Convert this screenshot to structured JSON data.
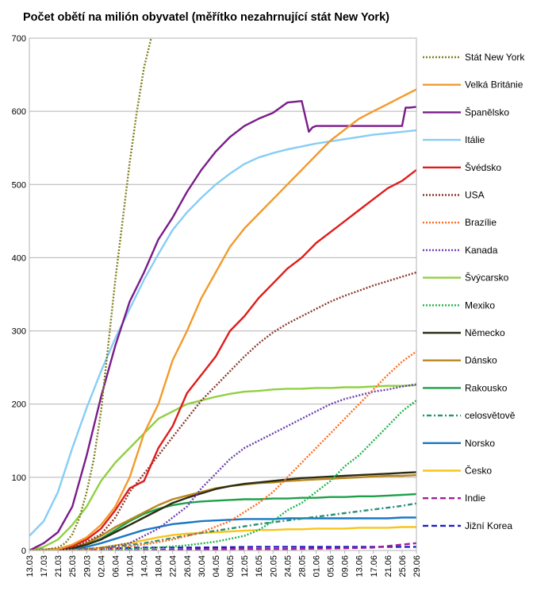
{
  "chart_data": {
    "type": "line",
    "title": "Počet obětí na milión obyvatel (měřítko nezahrnující stát New York)",
    "xlabel": "",
    "ylabel": "",
    "ylim": [
      0,
      700
    ],
    "yticks": [
      0,
      100,
      200,
      300,
      400,
      500,
      600,
      700
    ],
    "xticks": [
      "13.03",
      "17.03",
      "21.03",
      "25.03",
      "29.03",
      "02.04",
      "06.04",
      "10.04",
      "14.04",
      "18.04",
      "22.04",
      "26.04",
      "30.04",
      "04.05",
      "08.05",
      "12.05",
      "16.05",
      "20.05",
      "24.05",
      "28.05",
      "01.06",
      "05.06",
      "09.06",
      "13.06",
      "17.06",
      "21.06",
      "25.06",
      "29.06"
    ],
    "grid": "horizontal",
    "legend_position": "right",
    "series": [
      {
        "name": "Stát New York",
        "color": "#7f7f1f",
        "dash": "dot",
        "x": [
          0,
          4,
          8,
          10,
          12,
          14,
          16,
          18,
          20,
          22,
          24,
          26,
          28,
          30,
          32,
          34,
          36
        ],
        "y": [
          0,
          1,
          4,
          10,
          22,
          45,
          80,
          125,
          190,
          280,
          370,
          450,
          530,
          600,
          660,
          700,
          740
        ]
      },
      {
        "name": "Velká Británie",
        "color": "#f39a2c",
        "dash": "solid",
        "x": [
          0,
          8,
          12,
          16,
          20,
          24,
          28,
          32,
          36,
          40,
          44,
          48,
          52,
          56,
          60,
          64,
          68,
          72,
          76,
          80,
          84,
          88,
          92,
          96,
          100,
          104,
          108,
          110
        ],
        "y": [
          0,
          2,
          8,
          18,
          35,
          60,
          100,
          160,
          200,
          260,
          300,
          345,
          380,
          415,
          440,
          460,
          480,
          500,
          520,
          540,
          560,
          575,
          590,
          600,
          610,
          620,
          630,
          640
        ]
      },
      {
        "name": "Španělsko",
        "color": "#7a1c8a",
        "dash": "solid",
        "x": [
          0,
          4,
          8,
          12,
          16,
          20,
          24,
          28,
          32,
          36,
          40,
          44,
          48,
          52,
          56,
          60,
          64,
          68,
          72,
          76,
          78,
          79,
          80,
          84,
          88,
          92,
          96,
          100,
          104,
          105,
          106,
          108,
          110
        ],
        "y": [
          0,
          10,
          25,
          60,
          130,
          210,
          280,
          340,
          380,
          425,
          455,
          490,
          520,
          545,
          565,
          580,
          590,
          598,
          612,
          614,
          572,
          578,
          580,
          580,
          580,
          580,
          580,
          580,
          580,
          605,
          605,
          606,
          606
        ]
      },
      {
        "name": "Itálie",
        "color": "#87cdf5",
        "dash": "solid",
        "x": [
          0,
          4,
          8,
          12,
          16,
          20,
          24,
          28,
          32,
          36,
          40,
          44,
          48,
          52,
          56,
          60,
          64,
          68,
          72,
          76,
          80,
          84,
          88,
          92,
          96,
          100,
          104,
          108,
          110
        ],
        "y": [
          20,
          40,
          80,
          140,
          195,
          245,
          290,
          330,
          370,
          405,
          438,
          462,
          482,
          500,
          515,
          528,
          537,
          543,
          548,
          552,
          556,
          559,
          562,
          565,
          568,
          570,
          572,
          574,
          575
        ]
      },
      {
        "name": "Švédsko",
        "color": "#e01b1b",
        "dash": "solid",
        "x": [
          0,
          8,
          12,
          16,
          20,
          24,
          28,
          32,
          36,
          40,
          44,
          48,
          52,
          56,
          60,
          64,
          68,
          72,
          76,
          80,
          84,
          88,
          92,
          96,
          100,
          104,
          108,
          110
        ],
        "y": [
          0,
          2,
          6,
          15,
          30,
          55,
          85,
          95,
          140,
          170,
          215,
          240,
          265,
          300,
          320,
          345,
          365,
          385,
          400,
          420,
          435,
          450,
          465,
          480,
          495,
          505,
          520,
          527
        ]
      },
      {
        "name": "USA",
        "color": "#8b3a2e",
        "dash": "dot",
        "x": [
          0,
          8,
          12,
          16,
          20,
          24,
          28,
          32,
          36,
          40,
          44,
          48,
          52,
          56,
          60,
          64,
          68,
          72,
          76,
          80,
          84,
          88,
          92,
          96,
          100,
          104,
          108,
          110
        ],
        "y": [
          0,
          2,
          5,
          12,
          22,
          45,
          80,
          105,
          130,
          155,
          180,
          205,
          225,
          245,
          265,
          283,
          298,
          310,
          320,
          330,
          340,
          348,
          355,
          362,
          368,
          374,
          380,
          385
        ]
      },
      {
        "name": "Brazílie",
        "color": "#ff6a1c",
        "dash": "dot",
        "x": [
          0,
          16,
          24,
          32,
          40,
          48,
          56,
          64,
          68,
          72,
          76,
          80,
          84,
          88,
          92,
          96,
          100,
          104,
          108,
          110
        ],
        "y": [
          0,
          1,
          3,
          8,
          15,
          25,
          40,
          65,
          80,
          100,
          120,
          140,
          160,
          180,
          200,
          220,
          240,
          258,
          272,
          280
        ]
      },
      {
        "name": "Kanada",
        "color": "#6c3fb0",
        "dash": "dot",
        "x": [
          0,
          12,
          20,
          28,
          36,
          44,
          48,
          52,
          56,
          60,
          64,
          68,
          72,
          76,
          80,
          84,
          88,
          92,
          96,
          100,
          104,
          108,
          110
        ],
        "y": [
          0,
          1,
          3,
          10,
          30,
          60,
          85,
          105,
          125,
          140,
          150,
          160,
          170,
          180,
          190,
          200,
          207,
          212,
          217,
          220,
          224,
          227,
          229
        ]
      },
      {
        "name": "Švýcarsko",
        "color": "#90d040",
        "dash": "solid",
        "x": [
          0,
          4,
          8,
          12,
          16,
          20,
          24,
          28,
          32,
          36,
          40,
          44,
          48,
          52,
          56,
          60,
          64,
          68,
          72,
          76,
          80,
          84,
          88,
          92,
          96,
          100,
          104,
          108,
          110
        ],
        "y": [
          0,
          5,
          15,
          35,
          60,
          95,
          120,
          140,
          160,
          180,
          190,
          200,
          205,
          210,
          214,
          217,
          218,
          220,
          221,
          221,
          222,
          222,
          223,
          223,
          224,
          225,
          225,
          226,
          226
        ]
      },
      {
        "name": "Mexiko",
        "color": "#1fb44a",
        "dash": "dot",
        "x": [
          0,
          20,
          28,
          36,
          44,
          52,
          60,
          64,
          68,
          72,
          76,
          80,
          84,
          88,
          92,
          96,
          100,
          104,
          108,
          110
        ],
        "y": [
          0,
          1,
          2,
          4,
          7,
          12,
          20,
          28,
          40,
          55,
          65,
          80,
          95,
          115,
          130,
          150,
          170,
          190,
          205,
          215
        ]
      },
      {
        "name": "Německo",
        "color": "#2c2c14",
        "dash": "solid",
        "x": [
          0,
          8,
          12,
          16,
          20,
          24,
          28,
          32,
          36,
          40,
          44,
          48,
          52,
          56,
          60,
          64,
          68,
          72,
          76,
          80,
          84,
          88,
          92,
          96,
          100,
          104,
          108,
          110
        ],
        "y": [
          0,
          1,
          3,
          8,
          15,
          25,
          35,
          45,
          55,
          65,
          72,
          78,
          84,
          88,
          91,
          93,
          95,
          97,
          99,
          100,
          101,
          102,
          103,
          104,
          105,
          106,
          107,
          107
        ]
      },
      {
        "name": "Dánsko",
        "color": "#b8861c",
        "dash": "solid",
        "x": [
          0,
          8,
          12,
          16,
          20,
          24,
          28,
          32,
          36,
          40,
          44,
          48,
          52,
          56,
          60,
          64,
          68,
          72,
          76,
          80,
          84,
          88,
          92,
          96,
          100,
          104,
          108,
          110
        ],
        "y": [
          0,
          1,
          4,
          10,
          20,
          32,
          42,
          52,
          62,
          70,
          75,
          80,
          85,
          88,
          90,
          92,
          93,
          95,
          96,
          97,
          98,
          99,
          100,
          101,
          102,
          102,
          103,
          103
        ]
      },
      {
        "name": "Rakousko",
        "color": "#1ea04a",
        "dash": "solid",
        "x": [
          0,
          8,
          12,
          16,
          20,
          24,
          28,
          32,
          36,
          40,
          44,
          48,
          52,
          56,
          60,
          64,
          68,
          72,
          76,
          80,
          84,
          88,
          92,
          96,
          100,
          104,
          108,
          110
        ],
        "y": [
          0,
          1,
          3,
          8,
          16,
          28,
          40,
          50,
          57,
          62,
          65,
          67,
          68,
          69,
          70,
          70,
          71,
          71,
          72,
          72,
          73,
          73,
          74,
          74,
          75,
          76,
          77,
          78
        ]
      },
      {
        "name": "celosvětově",
        "color": "#2a8f7a",
        "dash": "dashdot",
        "x": [
          0,
          8,
          16,
          24,
          32,
          40,
          48,
          56,
          64,
          72,
          80,
          88,
          96,
          104,
          110
        ],
        "y": [
          0,
          1,
          2,
          5,
          10,
          17,
          24,
          30,
          36,
          41,
          46,
          51,
          56,
          61,
          66
        ]
      },
      {
        "name": "Norsko",
        "color": "#1a78c4",
        "dash": "solid",
        "x": [
          0,
          8,
          12,
          16,
          20,
          24,
          28,
          32,
          36,
          40,
          44,
          48,
          52,
          56,
          60,
          64,
          68,
          72,
          76,
          80,
          84,
          88,
          92,
          96,
          100,
          104,
          108,
          110
        ],
        "y": [
          0,
          1,
          2,
          5,
          10,
          16,
          22,
          28,
          32,
          36,
          38,
          40,
          41,
          42,
          43,
          43,
          43,
          44,
          44,
          44,
          44,
          44,
          44,
          44,
          44,
          45,
          45,
          45
        ]
      },
      {
        "name": "Česko",
        "color": "#f7c51a",
        "dash": "solid",
        "x": [
          0,
          12,
          16,
          20,
          24,
          28,
          32,
          36,
          40,
          44,
          48,
          52,
          56,
          60,
          64,
          68,
          72,
          76,
          80,
          84,
          88,
          92,
          96,
          100,
          104,
          108,
          110
        ],
        "y": [
          0,
          1,
          2,
          4,
          7,
          10,
          14,
          18,
          21,
          23,
          24,
          25,
          26,
          27,
          28,
          28,
          29,
          29,
          30,
          30,
          30,
          31,
          31,
          31,
          32,
          32,
          32
        ]
      },
      {
        "name": "Indie",
        "color": "#a01f9a",
        "dash": "dash",
        "x": [
          0,
          24,
          40,
          56,
          72,
          88,
          96,
          100,
          104,
          108,
          110
        ],
        "y": [
          0,
          0,
          1,
          2,
          2,
          3,
          4,
          6,
          8,
          10,
          11
        ]
      },
      {
        "name": "Jižní Korea",
        "color": "#1e1ec0",
        "dash": "dash",
        "x": [
          0,
          8,
          16,
          24,
          32,
          48,
          64,
          80,
          96,
          110
        ],
        "y": [
          1,
          2,
          2,
          3,
          4,
          4,
          5,
          5,
          5,
          5
        ]
      }
    ]
  }
}
